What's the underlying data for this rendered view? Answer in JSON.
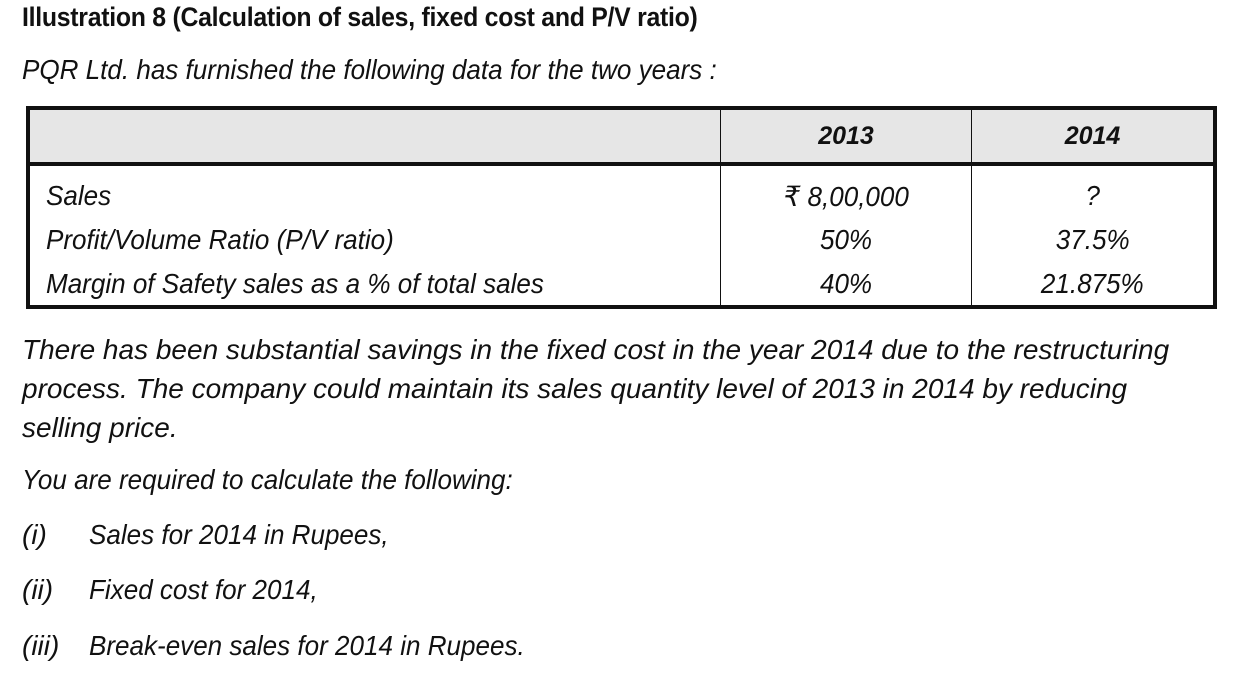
{
  "title": "Illustration 8 (Calculation of sales, fixed cost and  P/V ratio)",
  "intro": "PQR Ltd. has furnished the following data for the two years :",
  "table": {
    "headers": [
      "",
      "2013",
      "2014"
    ],
    "rows": [
      {
        "label": "Sales",
        "y2013": "₹ 8,00,000",
        "y2014": "?"
      },
      {
        "label": "Profit/Volume Ratio (P/V ratio)",
        "y2013": "50%",
        "y2014": "37.5%"
      },
      {
        "label": "Margin of Safety sales as a % of total sales",
        "y2013": "40%",
        "y2014": "21.875%"
      }
    ]
  },
  "paragraph": {
    "line1": "There has been substantial savings in the fixed cost in the year 2014 due to the restructuring",
    "line2": "process. The company could maintain its sales quantity level of 2013 in 2014 by reducing",
    "line3": "selling price."
  },
  "required": "You are required to calculate the following:",
  "items": [
    {
      "num": "(i)",
      "text": "Sales for 2014 in Rupees,"
    },
    {
      "num": "(ii)",
      "text": "Fixed cost for 2014,"
    },
    {
      "num": "(iii)",
      "text": "Break-even sales for 2014 in Rupees."
    }
  ]
}
